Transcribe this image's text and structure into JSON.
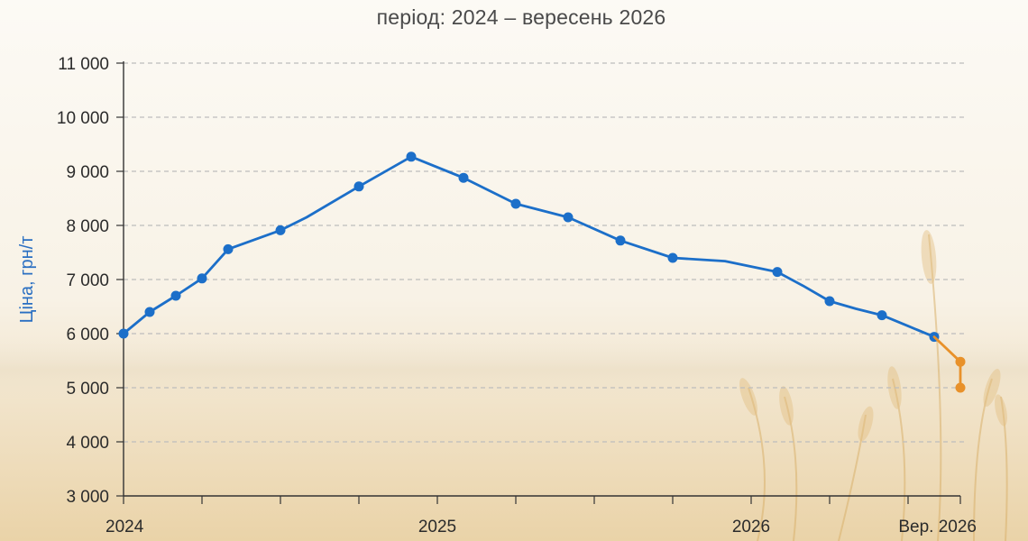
{
  "subtitle": "період: 2024 – вересень 2026",
  "colors": {
    "actual": "#1c6fc9",
    "forecast": "#e8912a",
    "ylabel": "#2a6fc2",
    "grid": "#bdbdbd",
    "axis": "#333333"
  },
  "chart_data": {
    "type": "line",
    "subtitle": "період: 2024 – вересень 2026",
    "ylabel": "Ціна, грн/т",
    "xlabel": "",
    "ylim": [
      3000,
      11000
    ],
    "yticks": [
      3000,
      4000,
      5000,
      6000,
      7000,
      8000,
      9000,
      10000,
      11000
    ],
    "ytick_labels": [
      "3 000",
      "4 000",
      "5 000",
      "6 000",
      "7 000",
      "8 000",
      "9 000",
      "10 000",
      "11 000"
    ],
    "xlim": [
      "2024-01",
      "2026-09"
    ],
    "xtick_labels": [
      "2024",
      "2025",
      "2026",
      "Вер. 2026"
    ],
    "xtick_label_dates": [
      "2024-01",
      "2025-01",
      "2026-01",
      "2026-09"
    ],
    "minor_xticks": [
      "2024-01",
      "2024-04",
      "2024-07",
      "2024-10",
      "2025-01",
      "2025-04",
      "2025-07",
      "2025-10",
      "2026-01",
      "2026-04",
      "2026-07",
      "2026-09"
    ],
    "grid": "horizontal dashed",
    "legend": "none",
    "series": [
      {
        "role": "actual",
        "color": "#1c6fc9",
        "x": [
          "2024-01",
          "2024-02",
          "2024-03",
          "2024-04",
          "2024-05",
          "2024-07",
          "2024-08",
          "2024-10",
          "2024-12",
          "2025-02",
          "2025-04",
          "2025-06",
          "2025-08",
          "2025-10",
          "2025-12",
          "2026-02",
          "2026-03",
          "2026-04",
          "2026-05",
          "2026-06",
          "2026-07",
          "2026-08"
        ],
        "y": [
          6000,
          6400,
          6700,
          7020,
          7560,
          7910,
          8150,
          8720,
          9270,
          8880,
          8400,
          8150,
          7720,
          7400,
          7340,
          7140,
          6880,
          6600,
          6460,
          6340,
          6140,
          5940
        ],
        "markers": [
          true,
          true,
          true,
          true,
          true,
          true,
          false,
          true,
          true,
          true,
          true,
          true,
          true,
          true,
          false,
          true,
          false,
          true,
          false,
          true,
          false,
          true
        ]
      },
      {
        "role": "forecast",
        "color": "#e8912a",
        "x": [
          "2026-08",
          "2026-09",
          "2026-09"
        ],
        "y": [
          5940,
          5480,
          5000
        ],
        "markers": [
          false,
          true,
          true
        ]
      }
    ]
  }
}
